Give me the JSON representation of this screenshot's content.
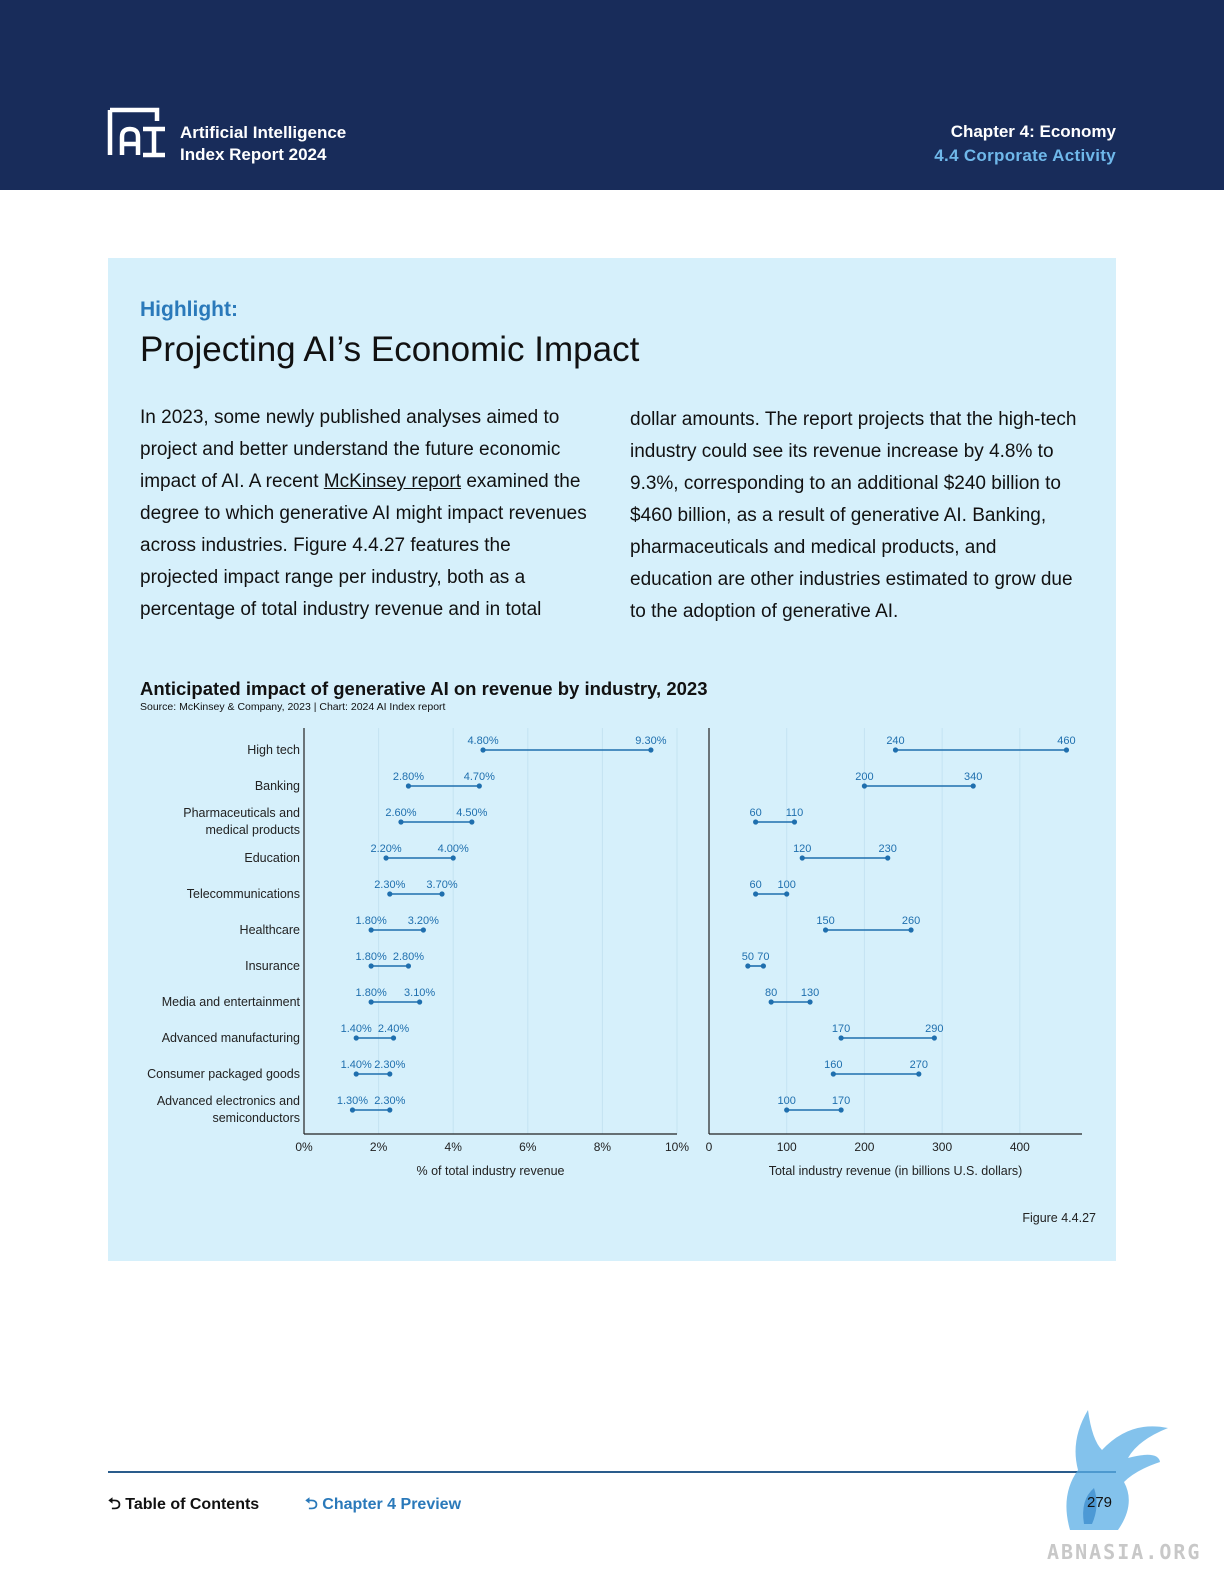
{
  "header": {
    "brand_line1": "Artificial Intelligence",
    "brand_line2": "Index Report 2024",
    "chapter": "Chapter 4: Economy",
    "section": "4.4 Corporate Activity"
  },
  "highlight": {
    "label": "Highlight:",
    "title": "Projecting AI’s Economic Impact",
    "p1_before": "In 2023, some newly published analyses aimed to project and better understand the future economic impact of AI. A recent ",
    "p1_link": "McKinsey report",
    "p1_after": " examined the degree to which generative AI might impact revenues across industries. Figure 4.4.27 features the projected impact range per industry, both as a percentage of total industry revenue and in total",
    "p2": "dollar amounts. The report projects that the high-tech industry could see its revenue increase by 4.8% to 9.3%, corresponding to an additional $240 billion to $460 billion, as a result of generative AI. Banking, pharmaceuticals and medical products, and education are other industries estimated to grow due to the adoption of generative AI."
  },
  "chart_data": {
    "type": "dumbbell",
    "title": "Anticipated impact of generative AI on revenue by industry, 2023",
    "source": "Source: McKinsey & Company, 2023 | Chart: 2024 AI Index report",
    "categories": [
      [
        "High tech"
      ],
      [
        "Banking"
      ],
      [
        "Pharmaceuticals and",
        "medical products"
      ],
      [
        "Education"
      ],
      [
        "Telecommunications"
      ],
      [
        "Healthcare"
      ],
      [
        "Insurance"
      ],
      [
        "Media and entertainment"
      ],
      [
        "Advanced manufacturing"
      ],
      [
        "Consumer packaged goods"
      ],
      [
        "Advanced electronics and",
        "semiconductors"
      ]
    ],
    "percent": {
      "xlabel": "% of total industry revenue",
      "xlim": [
        0,
        10
      ],
      "ticks": [
        0,
        2,
        4,
        6,
        8,
        10
      ],
      "tick_labels": [
        "0%",
        "2%",
        "4%",
        "6%",
        "8%",
        "10%"
      ],
      "low": [
        4.8,
        2.8,
        2.6,
        2.2,
        2.3,
        1.8,
        1.8,
        1.8,
        1.4,
        1.4,
        1.3
      ],
      "high": [
        9.3,
        4.7,
        4.5,
        4.0,
        3.7,
        3.2,
        2.8,
        3.1,
        2.4,
        2.3,
        2.3
      ],
      "low_labels": [
        "4.80%",
        "2.80%",
        "2.60%",
        "2.20%",
        "2.30%",
        "1.80%",
        "1.80%",
        "1.80%",
        "1.40%",
        "1.40%",
        "1.30%"
      ],
      "high_labels": [
        "9.30%",
        "4.70%",
        "4.50%",
        "4.00%",
        "3.70%",
        "3.20%",
        "2.80%",
        "3.10%",
        "2.40%",
        "2.30%",
        "2.30%"
      ]
    },
    "revenue": {
      "xlabel": "Total industry revenue (in billions U.S. dollars)",
      "xlim": [
        0,
        480
      ],
      "ticks": [
        0,
        100,
        200,
        300,
        400
      ],
      "tick_labels": [
        "0",
        "100",
        "200",
        "300",
        "400"
      ],
      "low": [
        240,
        200,
        60,
        120,
        60,
        150,
        50,
        80,
        170,
        160,
        100
      ],
      "high": [
        460,
        340,
        110,
        230,
        100,
        260,
        70,
        130,
        290,
        270,
        170
      ],
      "low_labels": [
        "240",
        "200",
        "60",
        "120",
        "60",
        "150",
        "50",
        "80",
        "170",
        "160",
        "100"
      ],
      "high_labels": [
        "460",
        "340",
        "110",
        "230",
        "100",
        "260",
        "70",
        "130",
        "290",
        "270",
        "170"
      ]
    },
    "color": "#1f6fae",
    "grid": true
  },
  "figure_label": "Figure 4.4.27",
  "footer": {
    "toc": "Table of Contents",
    "preview": "Chapter 4 Preview",
    "page": "279"
  },
  "watermark": "ABNASIA.ORG"
}
